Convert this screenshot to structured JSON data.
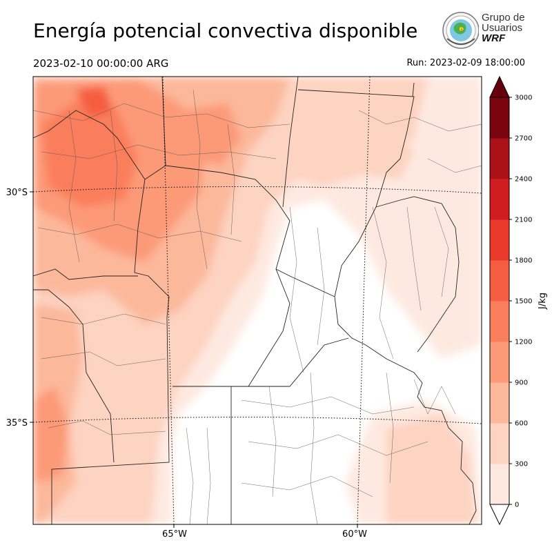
{
  "header": {
    "title": "Energía potencial convectiva disponible",
    "valid_time": "2023-02-10 00:00:00 ARG",
    "run_time": "Run: 2023-02-09 18:00:00"
  },
  "logo": {
    "line1": "Grupo de",
    "line2": "Usuarios",
    "line3": "WRF"
  },
  "map": {
    "lat_labels": [
      "30°S",
      "35°S"
    ],
    "lon_labels": [
      "65°W",
      "60°W"
    ]
  },
  "colorbar": {
    "unit": "J/kg",
    "ticks": [
      "0",
      "300",
      "600",
      "900",
      "1200",
      "1500",
      "1800",
      "2100",
      "2400",
      "2700",
      "3000"
    ],
    "colors": [
      "#fee9e1",
      "#fdd3c1",
      "#fcb89b",
      "#fc9a78",
      "#fb7e5c",
      "#f65c40",
      "#ea3a2c",
      "#d01d1f",
      "#ac1118",
      "#7a0510"
    ],
    "over_color": "#67000d"
  }
}
